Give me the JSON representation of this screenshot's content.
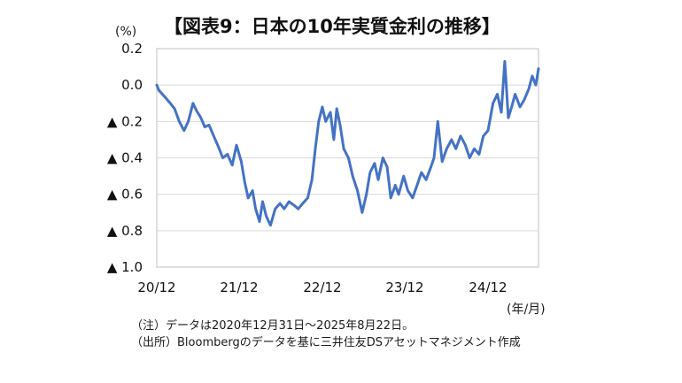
{
  "chart_data": {
    "type": "line",
    "title": "【図表9：日本の10年実質金利の推移】",
    "ylabel": "(%)",
    "xlabel": "(年/月)",
    "ylim": [
      -1.0,
      0.2
    ],
    "yticks": [
      {
        "value": 0.2,
        "label": "0.2"
      },
      {
        "value": 0.0,
        "label": "0.0"
      },
      {
        "value": -0.2,
        "label": "▲ 0.2"
      },
      {
        "value": -0.4,
        "label": "▲ 0.4"
      },
      {
        "value": -0.6,
        "label": "▲ 0.6"
      },
      {
        "value": -0.8,
        "label": "▲ 0.8"
      },
      {
        "value": -1.0,
        "label": "▲ 1.0"
      }
    ],
    "xrange": [
      "2020-12-31",
      "2025-08-22"
    ],
    "xticks": [
      {
        "date": "2020-12",
        "label": "20/12"
      },
      {
        "date": "2021-12",
        "label": "21/12"
      },
      {
        "date": "2022-12",
        "label": "22/12"
      },
      {
        "date": "2023-12",
        "label": "23/12"
      },
      {
        "date": "2024-12",
        "label": "24/12"
      }
    ],
    "grid": true,
    "color": "#4472c4",
    "series": [
      {
        "points": [
          [
            "2020-12-31",
            0.0
          ],
          [
            "2021-01-10",
            -0.03
          ],
          [
            "2021-01-25",
            -0.05
          ],
          [
            "2021-02-15",
            -0.08
          ],
          [
            "2021-03-01",
            -0.1
          ],
          [
            "2021-03-20",
            -0.13
          ],
          [
            "2021-04-10",
            -0.2
          ],
          [
            "2021-05-01",
            -0.25
          ],
          [
            "2021-05-20",
            -0.2
          ],
          [
            "2021-06-10",
            -0.1
          ],
          [
            "2021-06-25",
            -0.14
          ],
          [
            "2021-07-15",
            -0.18
          ],
          [
            "2021-08-01",
            -0.23
          ],
          [
            "2021-08-20",
            -0.22
          ],
          [
            "2021-09-10",
            -0.28
          ],
          [
            "2021-10-01",
            -0.34
          ],
          [
            "2021-10-20",
            -0.4
          ],
          [
            "2021-11-10",
            -0.38
          ],
          [
            "2021-12-01",
            -0.44
          ],
          [
            "2021-12-20",
            -0.33
          ],
          [
            "2022-01-10",
            -0.42
          ],
          [
            "2022-01-25",
            -0.53
          ],
          [
            "2022-02-10",
            -0.62
          ],
          [
            "2022-03-01",
            -0.58
          ],
          [
            "2022-03-15",
            -0.68
          ],
          [
            "2022-04-01",
            -0.75
          ],
          [
            "2022-04-15",
            -0.64
          ],
          [
            "2022-05-01",
            -0.72
          ],
          [
            "2022-05-20",
            -0.77
          ],
          [
            "2022-06-10",
            -0.68
          ],
          [
            "2022-07-01",
            -0.65
          ],
          [
            "2022-07-20",
            -0.68
          ],
          [
            "2022-08-10",
            -0.64
          ],
          [
            "2022-09-01",
            -0.66
          ],
          [
            "2022-09-20",
            -0.68
          ],
          [
            "2022-10-10",
            -0.65
          ],
          [
            "2022-11-01",
            -0.62
          ],
          [
            "2022-11-20",
            -0.52
          ],
          [
            "2022-12-05",
            -0.35
          ],
          [
            "2022-12-20",
            -0.2
          ],
          [
            "2023-01-05",
            -0.12
          ],
          [
            "2023-01-20",
            -0.2
          ],
          [
            "2023-02-10",
            -0.15
          ],
          [
            "2023-02-25",
            -0.3
          ],
          [
            "2023-03-10",
            -0.13
          ],
          [
            "2023-03-25",
            -0.22
          ],
          [
            "2023-04-10",
            -0.35
          ],
          [
            "2023-05-01",
            -0.4
          ],
          [
            "2023-05-20",
            -0.5
          ],
          [
            "2023-06-10",
            -0.58
          ],
          [
            "2023-07-01",
            -0.7
          ],
          [
            "2023-07-20",
            -0.6
          ],
          [
            "2023-08-05",
            -0.48
          ],
          [
            "2023-08-25",
            -0.43
          ],
          [
            "2023-09-10",
            -0.52
          ],
          [
            "2023-10-01",
            -0.4
          ],
          [
            "2023-10-20",
            -0.45
          ],
          [
            "2023-11-05",
            -0.62
          ],
          [
            "2023-11-25",
            -0.55
          ],
          [
            "2023-12-10",
            -0.6
          ],
          [
            "2024-01-01",
            -0.5
          ],
          [
            "2024-01-20",
            -0.58
          ],
          [
            "2024-02-10",
            -0.62
          ],
          [
            "2024-03-01",
            -0.55
          ],
          [
            "2024-03-20",
            -0.48
          ],
          [
            "2024-04-10",
            -0.52
          ],
          [
            "2024-05-01",
            -0.45
          ],
          [
            "2024-05-15",
            -0.4
          ],
          [
            "2024-06-01",
            -0.2
          ],
          [
            "2024-06-20",
            -0.42
          ],
          [
            "2024-07-10",
            -0.35
          ],
          [
            "2024-08-01",
            -0.3
          ],
          [
            "2024-08-20",
            -0.35
          ],
          [
            "2024-09-10",
            -0.28
          ],
          [
            "2024-10-01",
            -0.33
          ],
          [
            "2024-10-20",
            -0.4
          ],
          [
            "2024-11-10",
            -0.35
          ],
          [
            "2024-12-01",
            -0.38
          ],
          [
            "2024-12-20",
            -0.28
          ],
          [
            "2025-01-10",
            -0.25
          ],
          [
            "2025-02-01",
            -0.1
          ],
          [
            "2025-02-20",
            -0.05
          ],
          [
            "2025-03-10",
            -0.15
          ],
          [
            "2025-03-25",
            0.13
          ],
          [
            "2025-04-10",
            -0.18
          ],
          [
            "2025-04-25",
            -0.12
          ],
          [
            "2025-05-10",
            -0.05
          ],
          [
            "2025-06-01",
            -0.12
          ],
          [
            "2025-06-20",
            -0.08
          ],
          [
            "2025-07-10",
            -0.02
          ],
          [
            "2025-07-25",
            0.05
          ],
          [
            "2025-08-10",
            0.0
          ],
          [
            "2025-08-22",
            0.09
          ]
        ]
      }
    ]
  },
  "notes": {
    "line1": "（注）データは2020年12月31日～2025年8月22日。",
    "line2": "（出所）Bloombergのデータを基に三井住友DSアセットマネジメント作成"
  }
}
